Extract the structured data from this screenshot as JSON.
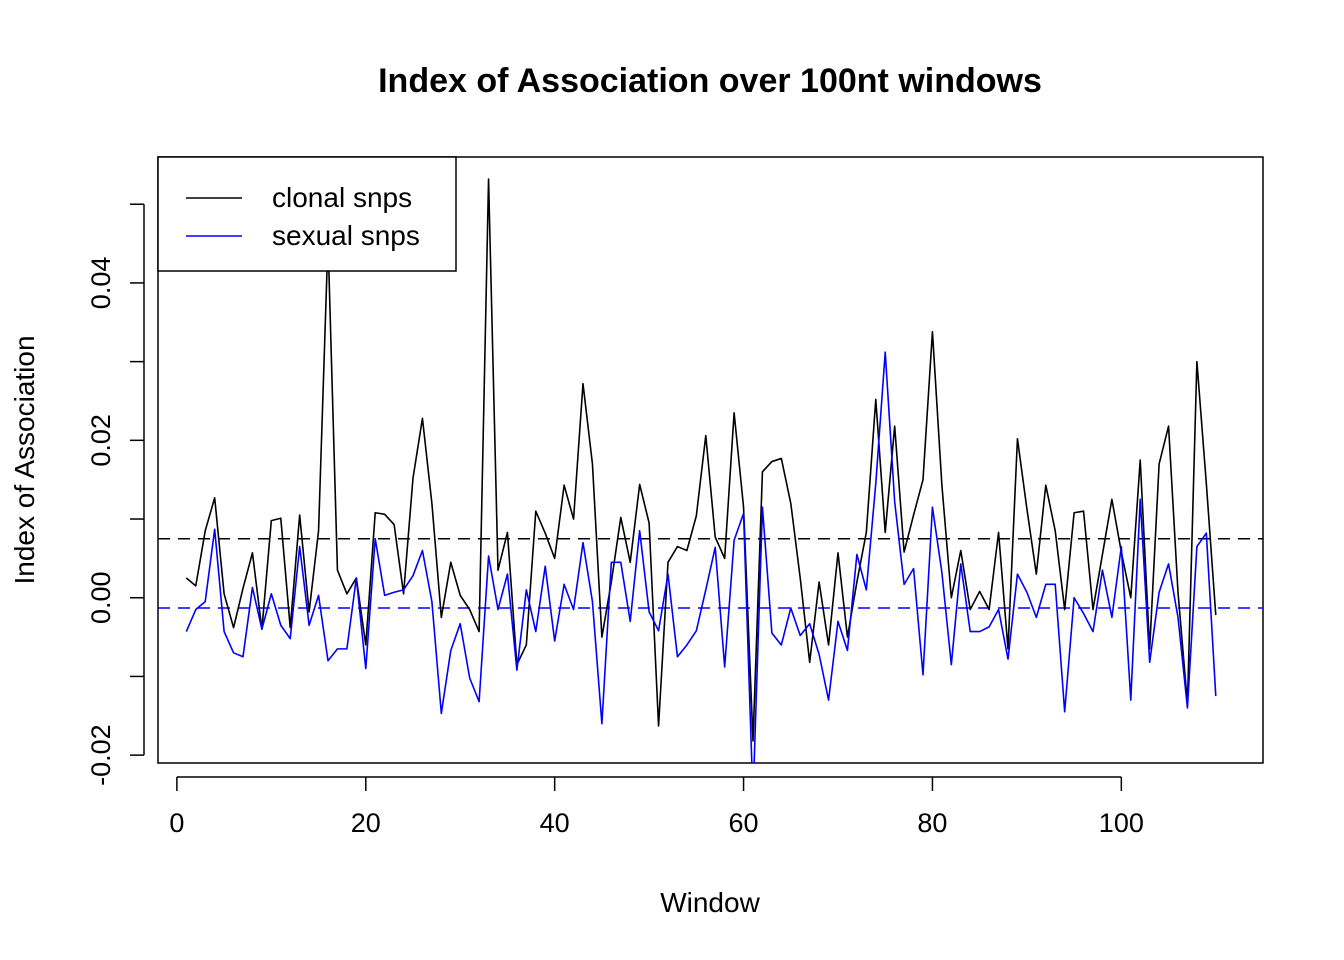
{
  "chart_data": {
    "type": "line",
    "title": "Index of Association over 100nt windows",
    "xlabel": "Window",
    "ylabel": "Index of Association",
    "xlim": [
      -2,
      115
    ],
    "ylim": [
      -0.021,
      0.056
    ],
    "x_ticks": [
      0,
      20,
      40,
      60,
      80,
      100
    ],
    "x_tick_labels": [
      "0",
      "20",
      "40",
      "60",
      "80",
      "100"
    ],
    "y_ticks": [
      -0.02,
      -0.01,
      0.0,
      0.01,
      0.02,
      0.03,
      0.04,
      0.05
    ],
    "y_tick_labels": [
      "-0.02",
      "",
      "0.00",
      "",
      "0.02",
      "",
      "0.04",
      ""
    ],
    "legend_position": "top-left",
    "grid": false,
    "series": [
      {
        "name": "clonal snps",
        "color": "#000000",
        "x": [
          1,
          2,
          3,
          4,
          5,
          6,
          7,
          8,
          9,
          10,
          11,
          12,
          13,
          14,
          15,
          16,
          17,
          18,
          19,
          20,
          21,
          22,
          23,
          24,
          25,
          26,
          27,
          28,
          29,
          30,
          31,
          32,
          33,
          34,
          35,
          36,
          37,
          38,
          39,
          40,
          41,
          42,
          43,
          44,
          45,
          46,
          47,
          48,
          49,
          50,
          51,
          52,
          53,
          54,
          55,
          56,
          57,
          58,
          59,
          60,
          61,
          62,
          63,
          64,
          65,
          66,
          67,
          68,
          69,
          70,
          71,
          72,
          73,
          74,
          75,
          76,
          77,
          78,
          79,
          80,
          81,
          82,
          83,
          84,
          85,
          86,
          87,
          88,
          89,
          90,
          91,
          92,
          93,
          94,
          95,
          96,
          97,
          98,
          99,
          100,
          101,
          102,
          103,
          104,
          105,
          106,
          107,
          108,
          109,
          110
        ],
        "values": [
          0.0025,
          0.0015,
          0.0085,
          0.0127,
          0.0005,
          -0.0038,
          0.0012,
          0.0057,
          -0.004,
          0.0098,
          0.0101,
          -0.0038,
          0.0105,
          -0.0018,
          0.0085,
          0.0455,
          0.0035,
          0.0005,
          0.0025,
          -0.006,
          0.0108,
          0.0106,
          0.0093,
          0.0005,
          0.0152,
          0.0228,
          0.012,
          -0.0025,
          0.0045,
          0.0003,
          -0.0015,
          -0.0043,
          0.0532,
          0.0035,
          0.0083,
          -0.0085,
          -0.006,
          0.011,
          0.0082,
          0.005,
          0.0143,
          0.01,
          0.0272,
          0.017,
          -0.005,
          0.002,
          0.0102,
          0.0045,
          0.0144,
          0.0095,
          -0.0163,
          0.0045,
          0.0065,
          0.006,
          0.0104,
          0.0206,
          0.0077,
          0.005,
          0.0235,
          0.0115,
          -0.0182,
          0.016,
          0.0173,
          0.0177,
          0.012,
          0.0025,
          -0.0082,
          0.002,
          -0.006,
          0.0057,
          -0.005,
          0.002,
          0.0083,
          0.0252,
          0.0083,
          0.0218,
          0.0058,
          0.0105,
          0.015,
          0.0338,
          0.0143,
          0.0,
          0.006,
          -0.0015,
          0.0008,
          -0.0015,
          0.0083,
          -0.0065,
          0.0202,
          0.0113,
          0.003,
          0.0143,
          0.0085,
          -0.0015,
          0.0108,
          0.011,
          -0.0015,
          0.0055,
          0.0125,
          0.0058,
          0.0,
          0.0175,
          -0.0065,
          0.017,
          0.0218,
          0.0007,
          -0.0135,
          0.03,
          0.0145,
          -0.0022
        ]
      },
      {
        "name": "sexual snps",
        "color": "#0000ff",
        "x": [
          1,
          2,
          3,
          4,
          5,
          6,
          7,
          8,
          9,
          10,
          11,
          12,
          13,
          14,
          15,
          16,
          17,
          18,
          19,
          20,
          21,
          22,
          23,
          24,
          25,
          26,
          27,
          28,
          29,
          30,
          31,
          32,
          33,
          34,
          35,
          36,
          37,
          38,
          39,
          40,
          41,
          42,
          43,
          44,
          45,
          46,
          47,
          48,
          49,
          50,
          51,
          52,
          53,
          54,
          55,
          56,
          57,
          58,
          59,
          60,
          61,
          62,
          63,
          64,
          65,
          66,
          67,
          68,
          69,
          70,
          71,
          72,
          73,
          74,
          75,
          76,
          77,
          78,
          79,
          80,
          81,
          82,
          83,
          84,
          85,
          86,
          87,
          88,
          89,
          90,
          91,
          92,
          93,
          94,
          95,
          96,
          97,
          98,
          99,
          100,
          101,
          102,
          103,
          104,
          105,
          106,
          107,
          108,
          109,
          110
        ],
        "values": [
          -0.0043,
          -0.0015,
          -0.0005,
          0.0087,
          -0.0043,
          -0.007,
          -0.0075,
          0.0013,
          -0.004,
          0.0005,
          -0.0035,
          -0.0052,
          0.0065,
          -0.0035,
          0.0003,
          -0.008,
          -0.0065,
          -0.0065,
          0.0025,
          -0.009,
          0.0075,
          0.0003,
          0.0007,
          0.001,
          0.0028,
          0.006,
          -0.0005,
          -0.0147,
          -0.0067,
          -0.0033,
          -0.0102,
          -0.0132,
          0.0053,
          -0.0015,
          0.003,
          -0.0092,
          0.001,
          -0.0043,
          0.004,
          -0.0055,
          0.0017,
          -0.0015,
          0.007,
          -0.0005,
          -0.016,
          0.0045,
          0.0045,
          -0.003,
          0.0085,
          -0.0018,
          -0.0042,
          0.003,
          -0.0075,
          -0.006,
          -0.0042,
          0.001,
          0.0064,
          -0.0088,
          0.0073,
          0.0107,
          -0.0255,
          0.0115,
          -0.0045,
          -0.006,
          -0.0013,
          -0.0048,
          -0.0033,
          -0.0072,
          -0.013,
          -0.003,
          -0.0067,
          0.0055,
          0.001,
          0.0145,
          0.0312,
          0.0122,
          0.0017,
          0.0037,
          -0.0098,
          0.0115,
          0.0032,
          -0.0085,
          0.0043,
          -0.0043,
          -0.0043,
          -0.0037,
          -0.0015,
          -0.0078,
          0.003,
          0.0007,
          -0.0025,
          0.0017,
          0.0017,
          -0.0145,
          0.0,
          -0.002,
          -0.0043,
          0.0035,
          -0.0025,
          0.0065,
          -0.013,
          0.0125,
          -0.0082,
          0.0007,
          0.0043,
          -0.0025,
          -0.014,
          0.0065,
          0.0082,
          -0.0125
        ]
      }
    ],
    "reference_lines": [
      {
        "series": "clonal snps",
        "y": 0.0075,
        "color": "#000000",
        "style": "dashed"
      },
      {
        "series": "sexual snps",
        "y": -0.0013,
        "color": "#0000ff",
        "style": "dashed"
      }
    ]
  }
}
